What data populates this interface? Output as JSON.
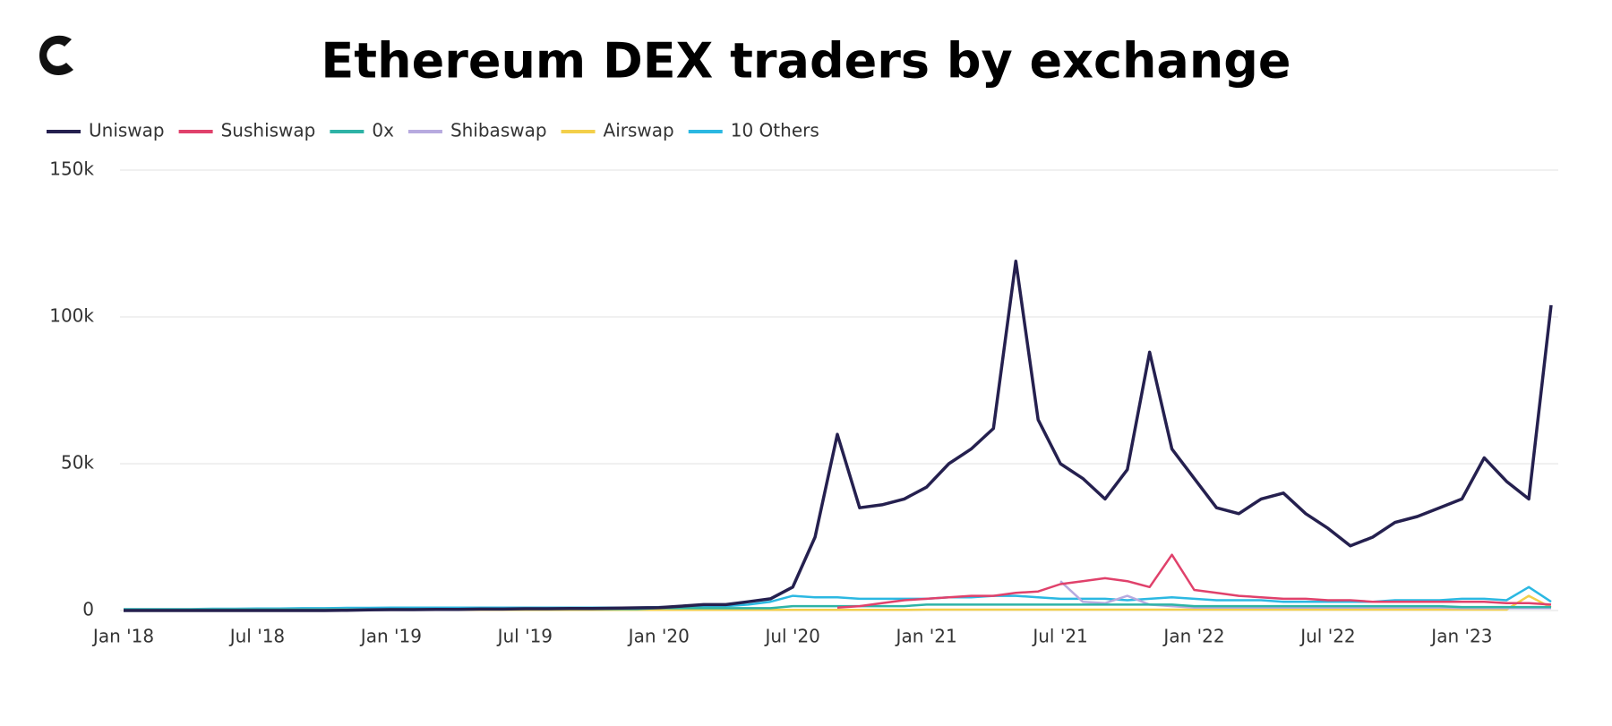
{
  "chart_data": {
    "type": "line",
    "title": "Ethereum DEX traders by exchange",
    "categories": [
      "Jan '18",
      null,
      null,
      null,
      null,
      null,
      "Jul '18",
      null,
      null,
      null,
      null,
      null,
      "Jan '19",
      null,
      null,
      null,
      null,
      null,
      "Jul '19",
      null,
      null,
      null,
      null,
      null,
      "Jan '20",
      null,
      null,
      null,
      null,
      null,
      "Jul '20",
      null,
      null,
      null,
      null,
      null,
      "Jan '21",
      null,
      null,
      null,
      null,
      null,
      "Jul '21",
      null,
      null,
      null,
      null,
      null,
      "Jan '22",
      null,
      null,
      null,
      null,
      null,
      "Jul '22",
      null,
      null,
      null,
      null,
      null,
      "Jan '23",
      null,
      null,
      null,
      null
    ],
    "series": [
      {
        "name": "Uniswap",
        "color": "#25204f",
        "values": [
          0,
          0,
          0,
          0,
          0,
          0,
          0,
          0,
          0,
          0,
          100,
          200,
          300,
          300,
          400,
          400,
          500,
          500,
          600,
          600,
          700,
          700,
          800,
          900,
          1000,
          1500,
          2000,
          2000,
          3000,
          4000,
          8000,
          25000,
          60000,
          35000,
          36000,
          38000,
          42000,
          50000,
          55000,
          62000,
          119000,
          65000,
          50000,
          45000,
          38000,
          48000,
          88000,
          55000,
          45000,
          35000,
          33000,
          38000,
          40000,
          33000,
          28000,
          22000,
          25000,
          30000,
          32000,
          35000,
          38000,
          52000,
          44000,
          38000,
          104000
        ]
      },
      {
        "name": "Sushiswap",
        "color": "#e0416b",
        "values": [
          null,
          null,
          null,
          null,
          null,
          null,
          null,
          null,
          null,
          null,
          null,
          null,
          null,
          null,
          null,
          null,
          null,
          null,
          null,
          null,
          null,
          null,
          null,
          null,
          null,
          null,
          null,
          null,
          null,
          null,
          null,
          null,
          1000,
          1500,
          2500,
          3500,
          4000,
          4500,
          5000,
          5000,
          6000,
          6500,
          9000,
          10000,
          11000,
          10000,
          8000,
          19000,
          7000,
          6000,
          5000,
          4500,
          4000,
          4000,
          3500,
          3500,
          3000,
          3000,
          3000,
          3000,
          3000,
          3000,
          2500,
          2500,
          2000
        ]
      },
      {
        "name": "0x",
        "color": "#2eb3a6",
        "values": [
          300,
          300,
          300,
          300,
          300,
          300,
          300,
          300,
          300,
          300,
          300,
          300,
          500,
          500,
          500,
          500,
          500,
          500,
          500,
          500,
          500,
          500,
          500,
          500,
          800,
          800,
          800,
          800,
          800,
          800,
          1500,
          1500,
          1500,
          1500,
          1500,
          1500,
          2000,
          2000,
          2000,
          2000,
          2000,
          2000,
          2000,
          2000,
          2000,
          2000,
          2000,
          2000,
          1500,
          1500,
          1500,
          1500,
          1500,
          1500,
          1500,
          1500,
          1500,
          1500,
          1500,
          1500,
          1200,
          1200,
          1200,
          1200,
          1200
        ]
      },
      {
        "name": "Shibaswap",
        "color": "#b7aadf",
        "values": [
          null,
          null,
          null,
          null,
          null,
          null,
          null,
          null,
          null,
          null,
          null,
          null,
          null,
          null,
          null,
          null,
          null,
          null,
          null,
          null,
          null,
          null,
          null,
          null,
          null,
          null,
          null,
          null,
          null,
          null,
          null,
          null,
          null,
          null,
          null,
          null,
          null,
          null,
          null,
          null,
          null,
          null,
          10000,
          3000,
          2500,
          5000,
          2000,
          1500,
          1000,
          1000,
          1000,
          1000,
          1000,
          1000,
          1000,
          1000,
          1000,
          1000,
          1000,
          1000,
          800,
          800,
          800,
          800,
          800
        ]
      },
      {
        "name": "Airswap",
        "color": "#f3cf4a",
        "values": [
          300,
          300,
          300,
          300,
          300,
          300,
          300,
          300,
          300,
          300,
          300,
          300,
          200,
          200,
          200,
          200,
          200,
          200,
          200,
          200,
          200,
          200,
          200,
          200,
          200,
          200,
          200,
          200,
          200,
          200,
          200,
          200,
          200,
          200,
          200,
          200,
          300,
          300,
          300,
          300,
          300,
          300,
          300,
          300,
          300,
          300,
          300,
          300,
          300,
          300,
          300,
          300,
          300,
          300,
          300,
          300,
          300,
          300,
          300,
          300,
          300,
          300,
          300,
          5000,
          1000
        ]
      },
      {
        "name": "10 Others",
        "color": "#2bb8e2",
        "values": [
          500,
          500,
          500,
          500,
          600,
          600,
          700,
          700,
          800,
          800,
          900,
          900,
          1000,
          1000,
          1000,
          1000,
          1000,
          1000,
          1000,
          1000,
          1000,
          1000,
          1000,
          1000,
          1200,
          1200,
          1500,
          1500,
          2000,
          3000,
          5000,
          4500,
          4500,
          4000,
          4000,
          4000,
          4000,
          4500,
          4500,
          5000,
          5000,
          4500,
          4000,
          4000,
          4000,
          3500,
          4000,
          4500,
          4000,
          3500,
          3500,
          3500,
          3000,
          3000,
          3000,
          3000,
          3000,
          3500,
          3500,
          3500,
          4000,
          4000,
          3500,
          8000,
          3000
        ]
      }
    ],
    "ylim": [
      0,
      150000
    ],
    "yticks": [
      {
        "value": 0,
        "label": "0"
      },
      {
        "value": 50000,
        "label": "50k"
      },
      {
        "value": 100000,
        "label": "100k"
      },
      {
        "value": 150000,
        "label": "150k"
      }
    ],
    "grid": true,
    "legend": "top-left"
  }
}
